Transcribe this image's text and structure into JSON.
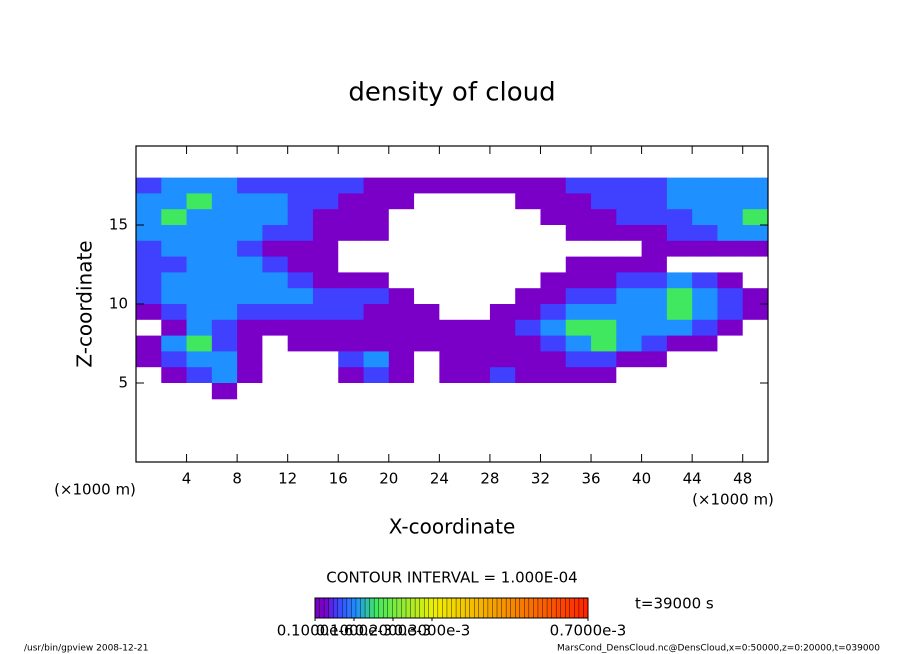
{
  "chart_data": {
    "type": "heatmap",
    "title": "density of cloud",
    "x_label": "X-coordinate",
    "y_label": "Z-coordinate",
    "x_unit_left": "(×1000 m)",
    "x_unit_right": "(×1000 m)",
    "contour_note": "CONTOUR INTERVAL = 1.000E-04",
    "time_note": "t=39000 s",
    "footer_left": "/usr/bin/gpview  2008-12-21",
    "footer_right": "MarsCond_DensCloud.nc@DensCloud,x=0:50000,z=0:20000,t=039000",
    "xlim": [
      0,
      50
    ],
    "ylim": [
      0,
      20
    ],
    "xticks": [
      4,
      8,
      12,
      16,
      20,
      24,
      28,
      32,
      36,
      40,
      44,
      48
    ],
    "yticks": [
      5,
      10,
      15
    ],
    "x": [
      1,
      3,
      5,
      7,
      9,
      11,
      13,
      15,
      17,
      19,
      21,
      23,
      25,
      27,
      29,
      31,
      33,
      35,
      37,
      39,
      41,
      43,
      45,
      47,
      49
    ],
    "y": [
      17.5,
      16.5,
      15.5,
      14.5,
      13.5,
      12.5,
      11.5,
      10.5,
      9.5,
      8.5,
      7.5,
      6.5,
      5.5,
      4.5
    ],
    "z": [
      [
        5e-05,
        0.0001,
        0.0001,
        0.0001,
        5e-05,
        5e-05,
        5e-05,
        5e-05,
        5e-05,
        2e-05,
        2e-05,
        2e-05,
        2e-05,
        2e-05,
        2e-05,
        2e-05,
        2e-05,
        5e-05,
        5e-05,
        5e-05,
        5e-05,
        0.0001,
        0.0001,
        0.0001,
        0.0001
      ],
      [
        0.0001,
        0.0001,
        0.00015,
        0.0001,
        0.0001,
        0.0001,
        5e-05,
        5e-05,
        2e-05,
        2e-05,
        2e-05,
        0,
        0,
        0,
        0,
        2e-05,
        2e-05,
        2e-05,
        5e-05,
        5e-05,
        5e-05,
        0.0001,
        0.0001,
        0.0001,
        0.0001
      ],
      [
        0.0001,
        0.00015,
        0.0001,
        0.0001,
        0.0001,
        0.0001,
        5e-05,
        2e-05,
        2e-05,
        2e-05,
        0,
        0,
        0,
        0,
        0,
        0,
        2e-05,
        2e-05,
        2e-05,
        5e-05,
        5e-05,
        5e-05,
        0.0001,
        0.0001,
        0.00015
      ],
      [
        0.0001,
        0.0001,
        0.0001,
        0.0001,
        0.0001,
        5e-05,
        5e-05,
        2e-05,
        2e-05,
        2e-05,
        0,
        0,
        0,
        0,
        0,
        0,
        0,
        2e-05,
        2e-05,
        2e-05,
        2e-05,
        5e-05,
        5e-05,
        0.0001,
        0.0001
      ],
      [
        5e-05,
        0.0001,
        0.0001,
        0.0001,
        5e-05,
        2e-05,
        2e-05,
        2e-05,
        0,
        0,
        0,
        0,
        0,
        0,
        0,
        0,
        0,
        0,
        0,
        0,
        2e-05,
        2e-05,
        2e-05,
        2e-05,
        2e-05
      ],
      [
        5e-05,
        5e-05,
        0.0001,
        0.0001,
        0.0001,
        5e-05,
        2e-05,
        2e-05,
        0,
        0,
        0,
        0,
        0,
        0,
        0,
        0,
        0,
        2e-05,
        2e-05,
        2e-05,
        2e-05,
        0,
        0,
        0,
        0
      ],
      [
        5e-05,
        0.0001,
        0.0001,
        0.0001,
        0.0001,
        0.0001,
        5e-05,
        2e-05,
        2e-05,
        2e-05,
        0,
        0,
        0,
        0,
        0,
        0,
        2e-05,
        2e-05,
        2e-05,
        5e-05,
        5e-05,
        0.0001,
        5e-05,
        2e-05,
        0
      ],
      [
        5e-05,
        0.0001,
        0.0001,
        0.0001,
        0.0001,
        0.0001,
        0.0001,
        5e-05,
        5e-05,
        5e-05,
        2e-05,
        0,
        0,
        0,
        0,
        2e-05,
        2e-05,
        5e-05,
        5e-05,
        0.0001,
        0.0001,
        0.00015,
        0.0001,
        5e-05,
        2e-05
      ],
      [
        2e-05,
        5e-05,
        0.0001,
        0.0001,
        5e-05,
        5e-05,
        5e-05,
        5e-05,
        5e-05,
        2e-05,
        2e-05,
        2e-05,
        0,
        0,
        2e-05,
        2e-05,
        5e-05,
        0.0001,
        0.0001,
        0.0001,
        0.0001,
        0.00015,
        0.0001,
        5e-05,
        2e-05
      ],
      [
        0,
        2e-05,
        0.0001,
        5e-05,
        2e-05,
        2e-05,
        2e-05,
        2e-05,
        2e-05,
        2e-05,
        2e-05,
        2e-05,
        2e-05,
        2e-05,
        2e-05,
        5e-05,
        0.0001,
        0.00015,
        0.00015,
        0.0001,
        0.0001,
        0.0001,
        5e-05,
        2e-05,
        0
      ],
      [
        2e-05,
        0.0001,
        0.00015,
        5e-05,
        2e-05,
        0,
        2e-05,
        2e-05,
        2e-05,
        2e-05,
        2e-05,
        2e-05,
        2e-05,
        2e-05,
        2e-05,
        2e-05,
        5e-05,
        0.0001,
        0.00015,
        0.0001,
        5e-05,
        2e-05,
        2e-05,
        0,
        0
      ],
      [
        2e-05,
        5e-05,
        0.0001,
        0.0001,
        2e-05,
        0,
        0,
        0,
        5e-05,
        0.0001,
        2e-05,
        0,
        2e-05,
        2e-05,
        2e-05,
        2e-05,
        2e-05,
        5e-05,
        5e-05,
        2e-05,
        2e-05,
        0,
        0,
        0,
        0
      ],
      [
        0,
        2e-05,
        5e-05,
        0.0001,
        2e-05,
        0,
        0,
        0,
        2e-05,
        5e-05,
        2e-05,
        0,
        2e-05,
        2e-05,
        5e-05,
        2e-05,
        2e-05,
        2e-05,
        2e-05,
        0,
        0,
        0,
        0,
        0,
        0
      ],
      [
        0,
        0,
        0,
        2e-05,
        0,
        0,
        0,
        0,
        0,
        0,
        0,
        0,
        0,
        0,
        0,
        0,
        0,
        0,
        0,
        0,
        0,
        0,
        0,
        0,
        0
      ]
    ],
    "colorscale": [
      [
        0,
        "#ffffff"
      ],
      [
        2e-05,
        "#7a00c8"
      ],
      [
        5e-05,
        "#4040ff"
      ],
      [
        0.0001,
        "#1e90ff"
      ],
      [
        0.00015,
        "#40e860"
      ],
      [
        0.0003,
        "#f0f000"
      ],
      [
        0.0007,
        "#ff2000"
      ]
    ],
    "clim": [
      0,
      0.0007
    ],
    "cticks": [
      {
        "value": 1e-07,
        "label": "0.1000e-6"
      },
      {
        "value": 0.0001,
        "label": "0.1000e-3"
      },
      {
        "value": 0.0002,
        "label": "0.2000e-3"
      },
      {
        "value": 0.0003,
        "label": "0.3000e-3"
      },
      {
        "value": 0.0007,
        "label": "0.7000e-3"
      }
    ]
  }
}
